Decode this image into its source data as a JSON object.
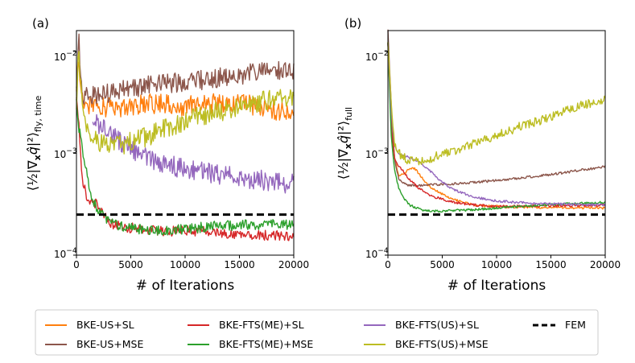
{
  "chart_data": [
    {
      "type": "line",
      "panel_label": "(a)",
      "ylabel": "⟨½|∇ₓq̂|²⟩_{fly,time}",
      "ylabel_parts": {
        "main": "⟨½|∇",
        "x": "x",
        "q": "q̂",
        "tail": "|²⟩",
        "sub": "fly, time"
      },
      "xlabel": "# of Iterations",
      "xlim": [
        0,
        20000
      ],
      "ylim": [
        0.0001,
        0.016
      ],
      "yscale": "log",
      "x_ticks": [
        "0",
        "5000",
        "10000",
        "15000",
        "20000"
      ],
      "y_ticks": [
        "10",
        "10",
        "10"
      ],
      "y_tick_exponents": [
        "−2",
        "−3",
        "−4"
      ],
      "y_tick_values": [
        0.01,
        0.001,
        0.0001
      ],
      "series": [
        {
          "name": "BKE-US+SL",
          "x": [
            0,
            200,
            500,
            1000,
            2000,
            4000,
            6000,
            8000,
            10000,
            12000,
            14000,
            16000,
            18000,
            20000
          ],
          "values": [
            0.004,
            0.009,
            0.0035,
            0.0031,
            0.0028,
            0.0028,
            0.003,
            0.0031,
            0.0029,
            0.003,
            0.0032,
            0.003,
            0.0027,
            0.0025
          ]
        },
        {
          "name": "BKE-US+MSE",
          "x": [
            0,
            200,
            500,
            1000,
            2000,
            4000,
            6000,
            8000,
            10000,
            12000,
            14000,
            16000,
            18000,
            20000
          ],
          "values": [
            0.0036,
            0.014,
            0.0038,
            0.0036,
            0.0038,
            0.0041,
            0.0046,
            0.0048,
            0.005,
            0.0053,
            0.0056,
            0.006,
            0.0063,
            0.0065
          ]
        },
        {
          "name": "BKE-FTS(ME)+SL",
          "x": [
            0,
            200,
            500,
            1000,
            1500,
            2000,
            3000,
            4000,
            6000,
            8000,
            10000,
            12000,
            14000,
            16000,
            18000,
            20000
          ],
          "values": [
            0.0035,
            0.0022,
            0.0006,
            0.00036,
            0.00034,
            0.0003,
            0.00021,
            0.00019,
            0.00018,
            0.00017,
            0.000175,
            0.00017,
            0.00016,
            0.00016,
            0.000155,
            0.000155
          ]
        },
        {
          "name": "BKE-FTS(ME)+MSE",
          "x": [
            0,
            200,
            500,
            1000,
            1500,
            2000,
            3000,
            4000,
            6000,
            8000,
            10000,
            12000,
            14000,
            16000,
            18000,
            20000
          ],
          "values": [
            0.0032,
            0.0018,
            0.0012,
            0.0006,
            0.00034,
            0.00028,
            0.00021,
            0.00019,
            0.00018,
            0.000175,
            0.00018,
            0.00019,
            0.000195,
            0.0002,
            0.0002,
            0.0002
          ]
        },
        {
          "name": "BKE-FTS(US)+SL",
          "x": [
            1500,
            2000,
            3000,
            4000,
            6000,
            8000,
            10000,
            12000,
            14000,
            16000,
            18000,
            20000
          ],
          "values": [
            0.0022,
            0.0019,
            0.0016,
            0.0013,
            0.00095,
            0.0008,
            0.0007,
            0.00065,
            0.0006,
            0.00056,
            0.00053,
            0.0005
          ]
        },
        {
          "name": "BKE-FTS(US)+MSE",
          "x": [
            0,
            200,
            500,
            1000,
            1500,
            2000,
            3000,
            4000,
            6000,
            8000,
            10000,
            12000,
            14000,
            16000,
            18000,
            20000
          ],
          "values": [
            0.0025,
            0.01,
            0.003,
            0.0016,
            0.0014,
            0.0013,
            0.0012,
            0.0012,
            0.0014,
            0.0017,
            0.0021,
            0.0024,
            0.0027,
            0.003,
            0.0034,
            0.0037
          ]
        },
        {
          "name": "FEM",
          "style": "dashed",
          "x": [
            0,
            20000
          ],
          "values": [
            0.00025,
            0.00025
          ]
        }
      ]
    },
    {
      "type": "line",
      "panel_label": "(b)",
      "ylabel": "⟨½|∇ₓq̂|²⟩_{full}",
      "ylabel_parts": {
        "main": "⟨½|∇",
        "x": "x",
        "q": "q̂",
        "tail": "|²⟩",
        "sub": "full"
      },
      "xlabel": "# of Iterations",
      "xlim": [
        0,
        20000
      ],
      "ylim": [
        0.0001,
        0.016
      ],
      "yscale": "log",
      "x_ticks": [
        "0",
        "5000",
        "10000",
        "15000",
        "20000"
      ],
      "y_ticks": [
        "10",
        "10",
        "10"
      ],
      "y_tick_exponents": [
        "−2",
        "−3",
        "−4"
      ],
      "y_tick_values": [
        0.01,
        0.001,
        0.0001
      ],
      "series": [
        {
          "name": "BKE-US+SL",
          "x": [
            0,
            300,
            600,
            1000,
            1500,
            2000,
            2500,
            3000,
            4000,
            6000,
            8000,
            10000,
            14000,
            20000
          ],
          "values": [
            0.012,
            0.0025,
            0.0009,
            0.0006,
            0.00062,
            0.00072,
            0.0007,
            0.0006,
            0.00045,
            0.00035,
            0.00031,
            0.0003,
            0.000295,
            0.00029
          ]
        },
        {
          "name": "BKE-US+MSE",
          "x": [
            0,
            300,
            600,
            1000,
            1500,
            2000,
            3000,
            4000,
            6000,
            8000,
            10000,
            12000,
            14000,
            16000,
            18000,
            20000
          ],
          "values": [
            0.016,
            0.003,
            0.0009,
            0.00055,
            0.0005,
            0.00048,
            0.00048,
            0.00049,
            0.0005,
            0.00052,
            0.00054,
            0.00057,
            0.0006,
            0.00064,
            0.00069,
            0.00074
          ]
        },
        {
          "name": "BKE-FTS(ME)+SL",
          "x": [
            0,
            300,
            600,
            1000,
            1500,
            2000,
            3000,
            4000,
            6000,
            8000,
            10000,
            14000,
            20000
          ],
          "values": [
            0.012,
            0.0018,
            0.0009,
            0.00075,
            0.00065,
            0.00055,
            0.00044,
            0.00038,
            0.00033,
            0.00031,
            0.0003,
            0.000305,
            0.00031
          ]
        },
        {
          "name": "BKE-FTS(ME)+MSE",
          "x": [
            0,
            300,
            600,
            1000,
            1500,
            2000,
            3000,
            4000,
            6000,
            8000,
            10000,
            14000,
            20000
          ],
          "values": [
            0.012,
            0.0015,
            0.0007,
            0.00045,
            0.00036,
            0.00031,
            0.00028,
            0.00027,
            0.000275,
            0.00028,
            0.00029,
            0.00031,
            0.00033
          ]
        },
        {
          "name": "BKE-FTS(US)+SL",
          "x": [
            0,
            300,
            600,
            1000,
            1500,
            2000,
            3000,
            4000,
            5000,
            6000,
            8000,
            10000,
            14000,
            20000
          ],
          "values": [
            0.012,
            0.0025,
            0.0012,
            0.001,
            0.00095,
            0.0009,
            0.0008,
            0.00065,
            0.00052,
            0.00044,
            0.00037,
            0.00034,
            0.00032,
            0.00031
          ]
        },
        {
          "name": "BKE-FTS(US)+MSE",
          "x": [
            0,
            300,
            600,
            1000,
            1500,
            2000,
            3000,
            4000,
            6000,
            8000,
            10000,
            12000,
            14000,
            16000,
            18000,
            20000
          ],
          "values": [
            0.012,
            0.003,
            0.0013,
            0.001,
            0.0009,
            0.00085,
            0.00085,
            0.0009,
            0.00105,
            0.00125,
            0.0015,
            0.0018,
            0.0021,
            0.0025,
            0.003,
            0.0034
          ]
        },
        {
          "name": "FEM",
          "style": "dashed",
          "x": [
            0,
            20000
          ],
          "values": [
            0.00025,
            0.00025
          ]
        }
      ]
    }
  ],
  "legend": {
    "entries": [
      {
        "label": "BKE-US+SL",
        "series": "BKE-US+SL"
      },
      {
        "label": "BKE-US+MSE",
        "series": "BKE-US+MSE"
      },
      {
        "label": "BKE-FTS(ME)+SL",
        "series": "BKE-FTS(ME)+SL"
      },
      {
        "label": "BKE-FTS(ME)+MSE",
        "series": "BKE-FTS(ME)+MSE"
      },
      {
        "label": "BKE-FTS(US)+SL",
        "series": "BKE-FTS(US)+SL"
      },
      {
        "label": "BKE-FTS(US)+MSE",
        "series": "BKE-FTS(US)+MSE"
      },
      {
        "label": "FEM",
        "series": "FEM"
      }
    ]
  },
  "colors": {
    "BKE-US+SL": "#ff7f0e",
    "BKE-US+MSE": "#8c564b",
    "BKE-FTS(ME)+SL": "#d62728",
    "BKE-FTS(ME)+MSE": "#2ca02c",
    "BKE-FTS(US)+SL": "#9467bd",
    "BKE-FTS(US)+MSE": "#bcbd22",
    "FEM": "#000000"
  }
}
